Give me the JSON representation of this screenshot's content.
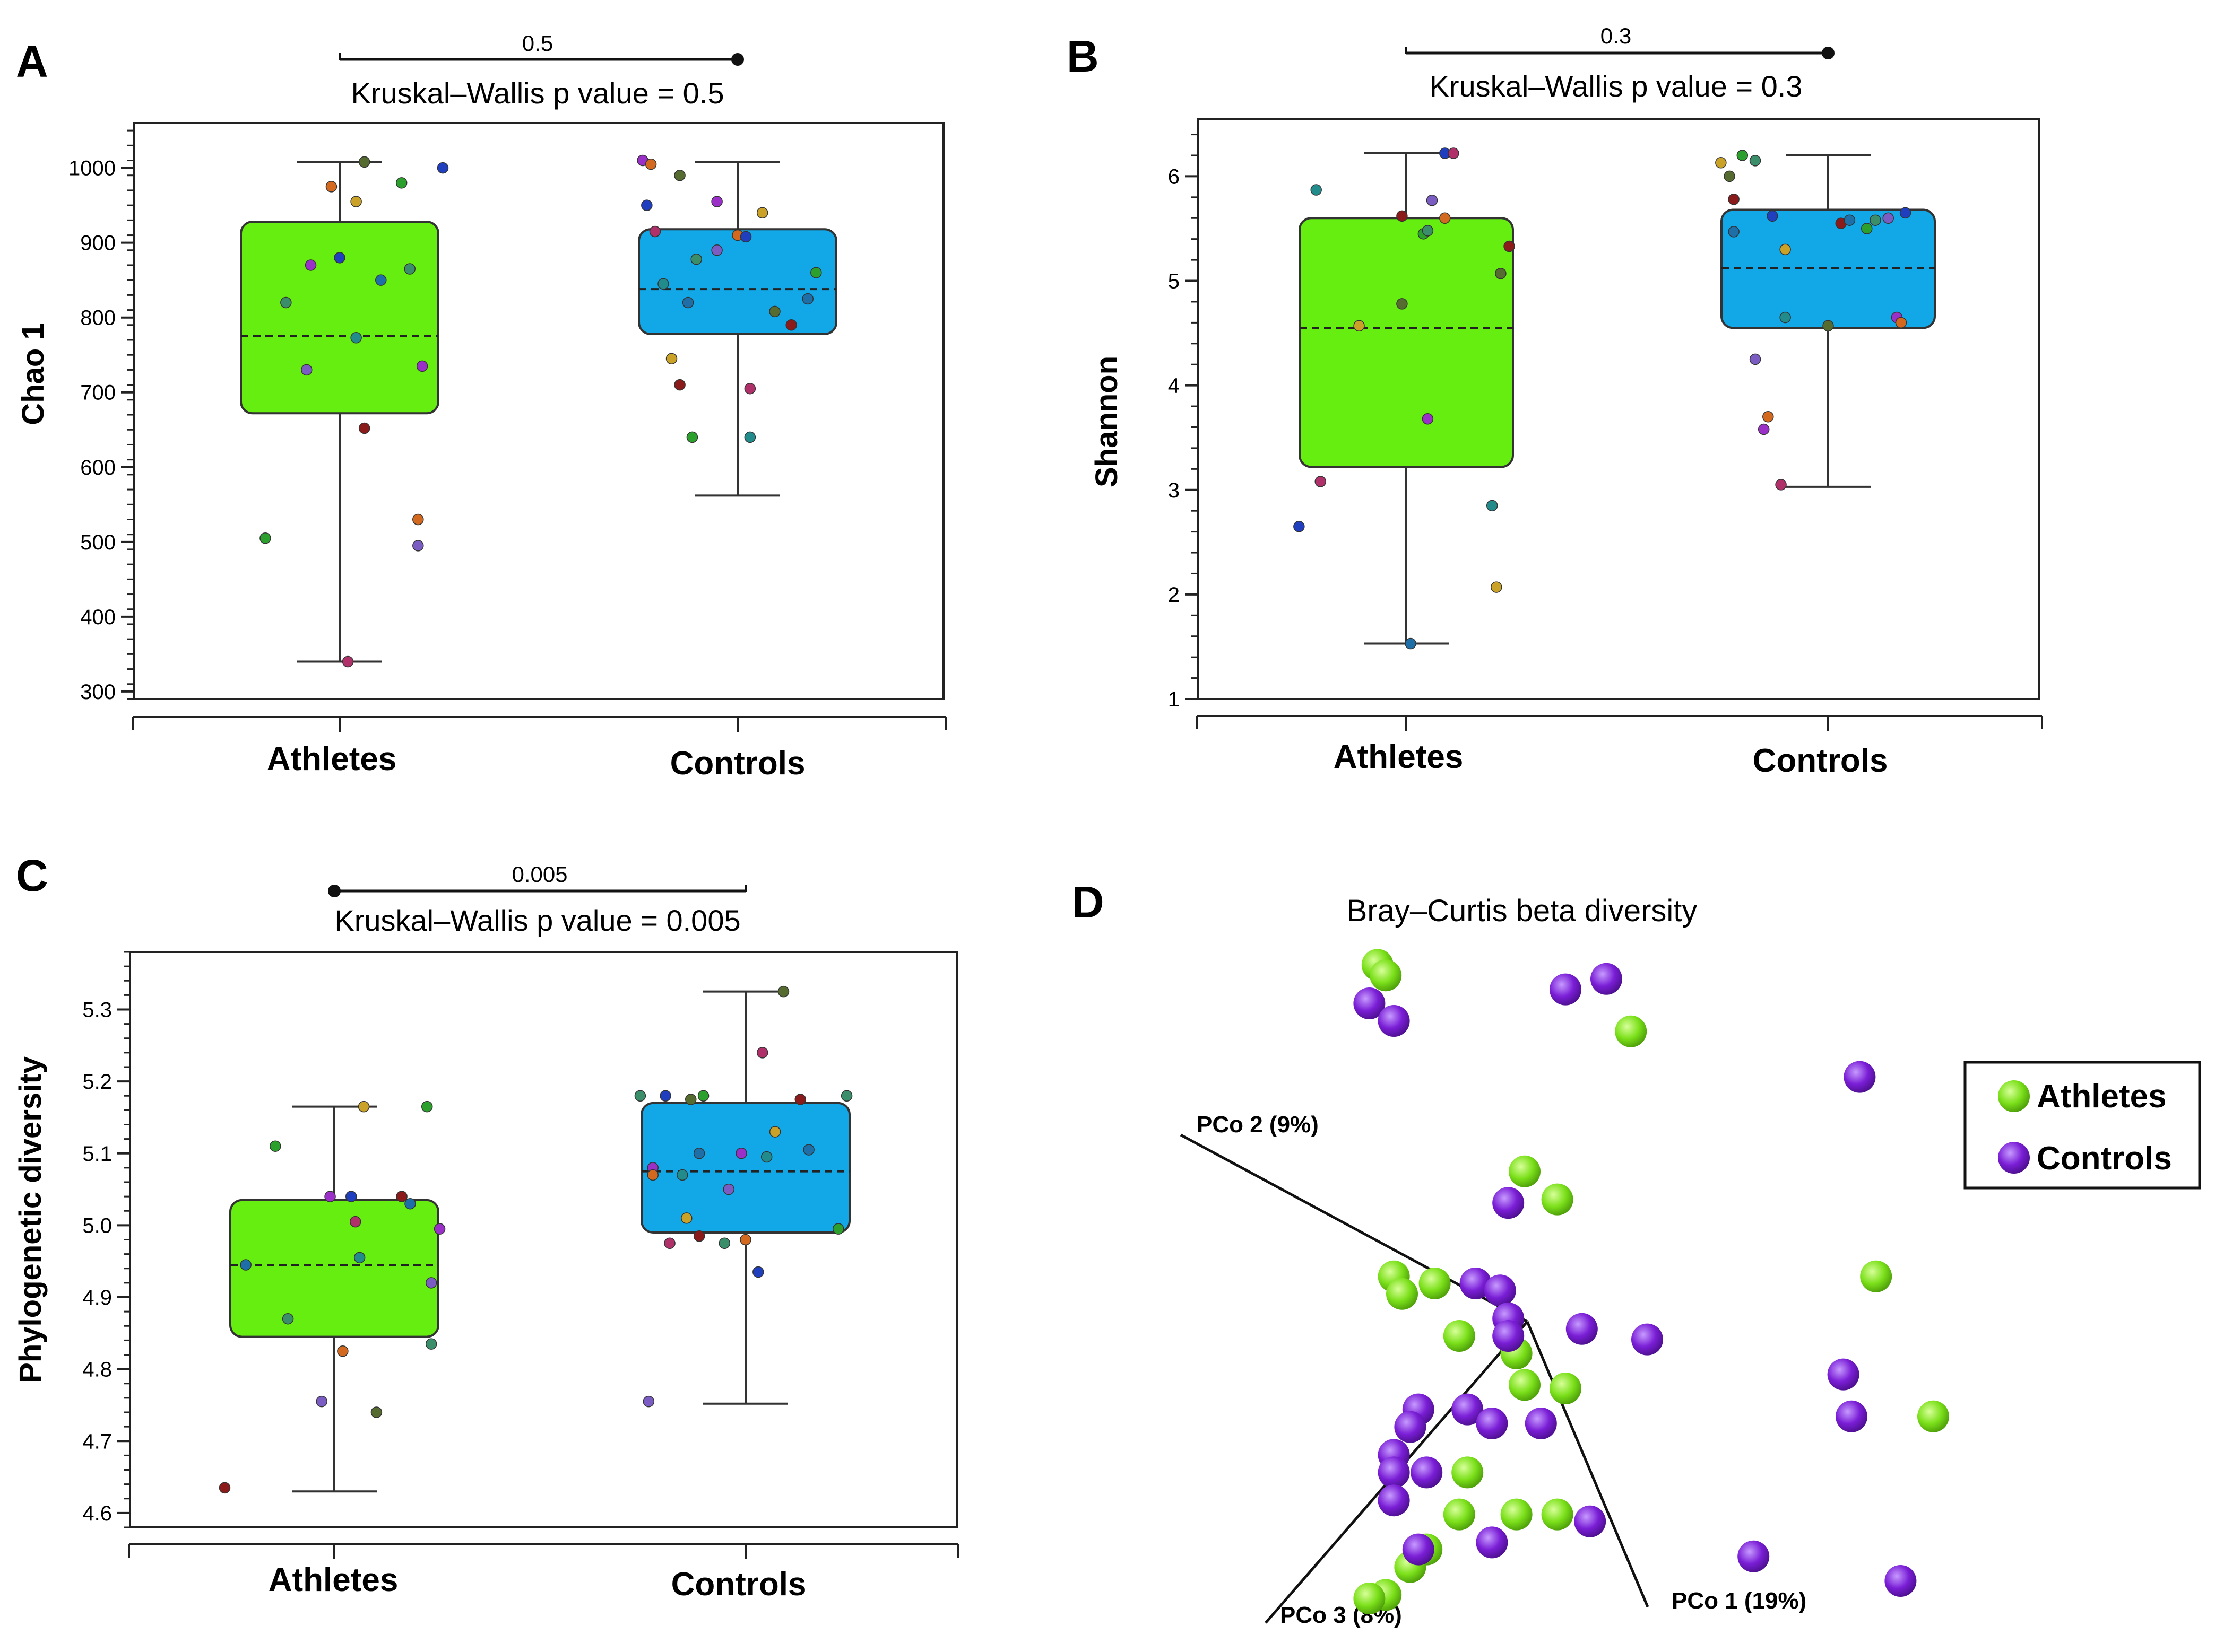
{
  "chart_data": [
    {
      "panel": "A",
      "type": "box",
      "ylabel": "Chao 1",
      "ylim": [
        290,
        1060
      ],
      "yticks": [
        300,
        400,
        500,
        600,
        700,
        800,
        900,
        1000
      ],
      "categories": [
        "Athletes",
        "Controls"
      ],
      "significance": {
        "label": "0.5",
        "from": "Athletes",
        "to": "Controls"
      },
      "pvalue_text": "Kruskal–Wallis p value = 0.5",
      "groups": [
        {
          "name": "Athletes",
          "color": "#66ee11",
          "whisker_low": 340,
          "q1": 672,
          "median": 775,
          "q3": 928,
          "whisker_high": 1008,
          "points": [
            [
              -0.18,
              505
            ],
            [
              -0.13,
              820
            ],
            [
              -0.08,
              730
            ],
            [
              -0.07,
              870
            ],
            [
              -0.02,
              975
            ],
            [
              0.0,
              880
            ],
            [
              0.02,
              340
            ],
            [
              0.04,
              773
            ],
            [
              0.04,
              955
            ],
            [
              0.06,
              1008
            ],
            [
              0.06,
              652
            ],
            [
              0.1,
              850
            ],
            [
              0.15,
              980
            ],
            [
              0.17,
              865
            ],
            [
              0.19,
              495
            ],
            [
              0.2,
              735
            ],
            [
              0.19,
              530
            ],
            [
              0.25,
              1000
            ]
          ]
        },
        {
          "name": "Controls",
          "color": "#12a8e8",
          "whisker_low": 562,
          "q1": 778,
          "median": 838,
          "q3": 918,
          "whisker_high": 1008,
          "points": [
            [
              -0.23,
              1010
            ],
            [
              -0.21,
              1005
            ],
            [
              -0.22,
              950
            ],
            [
              -0.2,
              915
            ],
            [
              -0.18,
              845
            ],
            [
              -0.16,
              745
            ],
            [
              -0.14,
              990
            ],
            [
              -0.14,
              710
            ],
            [
              -0.12,
              820
            ],
            [
              -0.11,
              640
            ],
            [
              -0.1,
              878
            ],
            [
              -0.05,
              890
            ],
            [
              -0.05,
              955
            ],
            [
              0.0,
              910
            ],
            [
              0.02,
              908
            ],
            [
              0.03,
              705
            ],
            [
              0.03,
              640
            ],
            [
              0.06,
              940
            ],
            [
              0.09,
              808
            ],
            [
              0.13,
              790
            ],
            [
              0.17,
              825
            ],
            [
              0.19,
              860
            ]
          ]
        }
      ]
    },
    {
      "panel": "B",
      "type": "box",
      "ylabel": "Shannon",
      "ylim": [
        1,
        6.55
      ],
      "yticks": [
        1,
        2,
        3,
        4,
        5,
        6
      ],
      "categories": [
        "Athletes",
        "Controls"
      ],
      "significance": {
        "label": "0.3",
        "from": "Athletes",
        "to": "Controls"
      },
      "pvalue_text": "Kruskal–Wallis p value = 0.3",
      "groups": [
        {
          "name": "Athletes",
          "color": "#66ee11",
          "whisker_low": 1.53,
          "q1": 3.22,
          "median": 4.55,
          "q3": 5.6,
          "whisker_high": 6.22,
          "points": [
            [
              -0.25,
              2.65
            ],
            [
              -0.2,
              3.08
            ],
            [
              -0.21,
              5.87
            ],
            [
              -0.11,
              4.57
            ],
            [
              -0.01,
              4.78
            ],
            [
              -0.01,
              5.62
            ],
            [
              0.01,
              1.53
            ],
            [
              0.04,
              5.45
            ],
            [
              0.05,
              5.48
            ],
            [
              0.06,
              5.77
            ],
            [
              0.05,
              3.68
            ],
            [
              0.09,
              5.6
            ],
            [
              0.09,
              6.22
            ],
            [
              0.11,
              6.22
            ],
            [
              0.2,
              2.85
            ],
            [
              0.21,
              2.07
            ],
            [
              0.22,
              5.07
            ],
            [
              0.24,
              5.33
            ]
          ]
        },
        {
          "name": "Controls",
          "color": "#12a8e8",
          "whisker_low": 3.03,
          "q1": 4.55,
          "median": 5.12,
          "q3": 5.68,
          "whisker_high": 6.2,
          "points": [
            [
              -0.25,
              6.13
            ],
            [
              -0.23,
              6.0
            ],
            [
              -0.22,
              5.78
            ],
            [
              -0.22,
              5.47
            ],
            [
              -0.2,
              6.2
            ],
            [
              -0.17,
              6.15
            ],
            [
              -0.17,
              4.25
            ],
            [
              -0.15,
              3.58
            ],
            [
              -0.14,
              3.7
            ],
            [
              -0.13,
              5.62
            ],
            [
              -0.11,
              3.05
            ],
            [
              -0.1,
              4.65
            ],
            [
              -0.1,
              5.3
            ],
            [
              0.0,
              4.57
            ],
            [
              0.03,
              5.55
            ],
            [
              0.05,
              5.58
            ],
            [
              0.09,
              5.5
            ],
            [
              0.11,
              5.58
            ],
            [
              0.14,
              5.6
            ],
            [
              0.16,
              4.65
            ],
            [
              0.17,
              4.6
            ],
            [
              0.18,
              5.65
            ]
          ]
        }
      ]
    },
    {
      "panel": "C",
      "type": "box",
      "ylabel": "Phylogenetic diversity",
      "ylim": [
        4.58,
        5.38
      ],
      "yticks": [
        4.6,
        4.7,
        4.8,
        4.9,
        5.0,
        5.1,
        5.2,
        5.3
      ],
      "categories": [
        "Athletes",
        "Controls"
      ],
      "significance": {
        "label": "0.005",
        "from": "Athletes",
        "to": "Controls"
      },
      "pvalue_text": "Kruskal–Wallis p value = 0.005",
      "groups": [
        {
          "name": "Athletes",
          "color": "#66ee11",
          "whisker_low": 4.63,
          "q1": 4.845,
          "median": 4.945,
          "q3": 5.035,
          "whisker_high": 5.165,
          "points": [
            [
              -0.26,
              4.635
            ],
            [
              -0.21,
              4.945
            ],
            [
              -0.14,
              5.11
            ],
            [
              -0.11,
              4.87
            ],
            [
              -0.03,
              4.755
            ],
            [
              -0.01,
              5.04
            ],
            [
              0.02,
              4.825
            ],
            [
              0.04,
              5.04
            ],
            [
              0.05,
              5.005
            ],
            [
              0.06,
              4.955
            ],
            [
              0.07,
              5.165
            ],
            [
              0.1,
              4.74
            ],
            [
              0.16,
              5.04
            ],
            [
              0.18,
              5.03
            ],
            [
              0.22,
              5.165
            ],
            [
              0.23,
              4.835
            ],
            [
              0.23,
              4.92
            ],
            [
              0.25,
              4.995
            ]
          ]
        },
        {
          "name": "Controls",
          "color": "#12a8e8",
          "whisker_low": 4.752,
          "q1": 4.99,
          "median": 5.075,
          "q3": 5.17,
          "whisker_high": 5.325,
          "points": [
            [
              -0.25,
              5.18
            ],
            [
              -0.23,
              4.755
            ],
            [
              -0.22,
              5.08
            ],
            [
              -0.22,
              5.07
            ],
            [
              -0.19,
              5.18
            ],
            [
              -0.18,
              4.975
            ],
            [
              -0.15,
              5.07
            ],
            [
              -0.14,
              5.01
            ],
            [
              -0.13,
              5.175
            ],
            [
              -0.11,
              4.985
            ],
            [
              -0.11,
              5.1
            ],
            [
              -0.1,
              5.18
            ],
            [
              -0.05,
              4.975
            ],
            [
              -0.04,
              5.05
            ],
            [
              -0.01,
              5.1
            ],
            [
              0.0,
              4.98
            ],
            [
              0.03,
              4.935
            ],
            [
              0.04,
              5.24
            ],
            [
              0.05,
              5.095
            ],
            [
              0.07,
              5.13
            ],
            [
              0.09,
              5.325
            ],
            [
              0.13,
              5.175
            ],
            [
              0.15,
              5.105
            ],
            [
              0.22,
              4.995
            ],
            [
              0.24,
              5.18
            ]
          ]
        }
      ]
    },
    {
      "panel": "D",
      "type": "scatter3d",
      "title": "Bray–Curtis beta diversity",
      "axes": [
        "PCo 1 (19%)",
        "PCo 2 (9%)",
        "PCo 3 (8%)"
      ],
      "legend": [
        {
          "name": "Athletes",
          "color": "#7be01a"
        },
        {
          "name": "Controls",
          "color": "#7a1ed6"
        }
      ],
      "series": [
        {
          "name": "Athletes",
          "color": "#7be01a",
          "points": [
            [
              0.27,
              0.045
            ],
            [
              0.28,
              0.06
            ],
            [
              0.58,
              0.14
            ],
            [
              0.45,
              0.34
            ],
            [
              0.49,
              0.38
            ],
            [
              0.29,
              0.49
            ],
            [
              0.34,
              0.5
            ],
            [
              0.3,
              0.515
            ],
            [
              0.37,
              0.575
            ],
            [
              0.44,
              0.6
            ],
            [
              0.45,
              0.645
            ],
            [
              0.5,
              0.65
            ],
            [
              0.38,
              0.77
            ],
            [
              0.37,
              0.83
            ],
            [
              0.44,
              0.83
            ],
            [
              0.49,
              0.83
            ],
            [
              0.33,
              0.88
            ],
            [
              0.31,
              0.905
            ],
            [
              0.28,
              0.945
            ],
            [
              0.26,
              0.95
            ],
            [
              0.88,
              0.49
            ],
            [
              0.95,
              0.69
            ]
          ]
        },
        {
          "name": "Controls",
          "color": "#7a1ed6",
          "points": [
            [
              0.26,
              0.1
            ],
            [
              0.29,
              0.125
            ],
            [
              0.5,
              0.08
            ],
            [
              0.55,
              0.065
            ],
            [
              0.86,
              0.205
            ],
            [
              0.43,
              0.385
            ],
            [
              0.39,
              0.5
            ],
            [
              0.42,
              0.51
            ],
            [
              0.43,
              0.55
            ],
            [
              0.43,
              0.575
            ],
            [
              0.52,
              0.565
            ],
            [
              0.6,
              0.58
            ],
            [
              0.84,
              0.63
            ],
            [
              0.85,
              0.69
            ],
            [
              0.32,
              0.68
            ],
            [
              0.38,
              0.68
            ],
            [
              0.41,
              0.7
            ],
            [
              0.47,
              0.7
            ],
            [
              0.31,
              0.705
            ],
            [
              0.29,
              0.745
            ],
            [
              0.29,
              0.77
            ],
            [
              0.33,
              0.77
            ],
            [
              0.29,
              0.81
            ],
            [
              0.32,
              0.88
            ],
            [
              0.41,
              0.87
            ],
            [
              0.73,
              0.89
            ],
            [
              0.53,
              0.84
            ],
            [
              0.91,
              0.925
            ]
          ]
        }
      ]
    }
  ]
}
